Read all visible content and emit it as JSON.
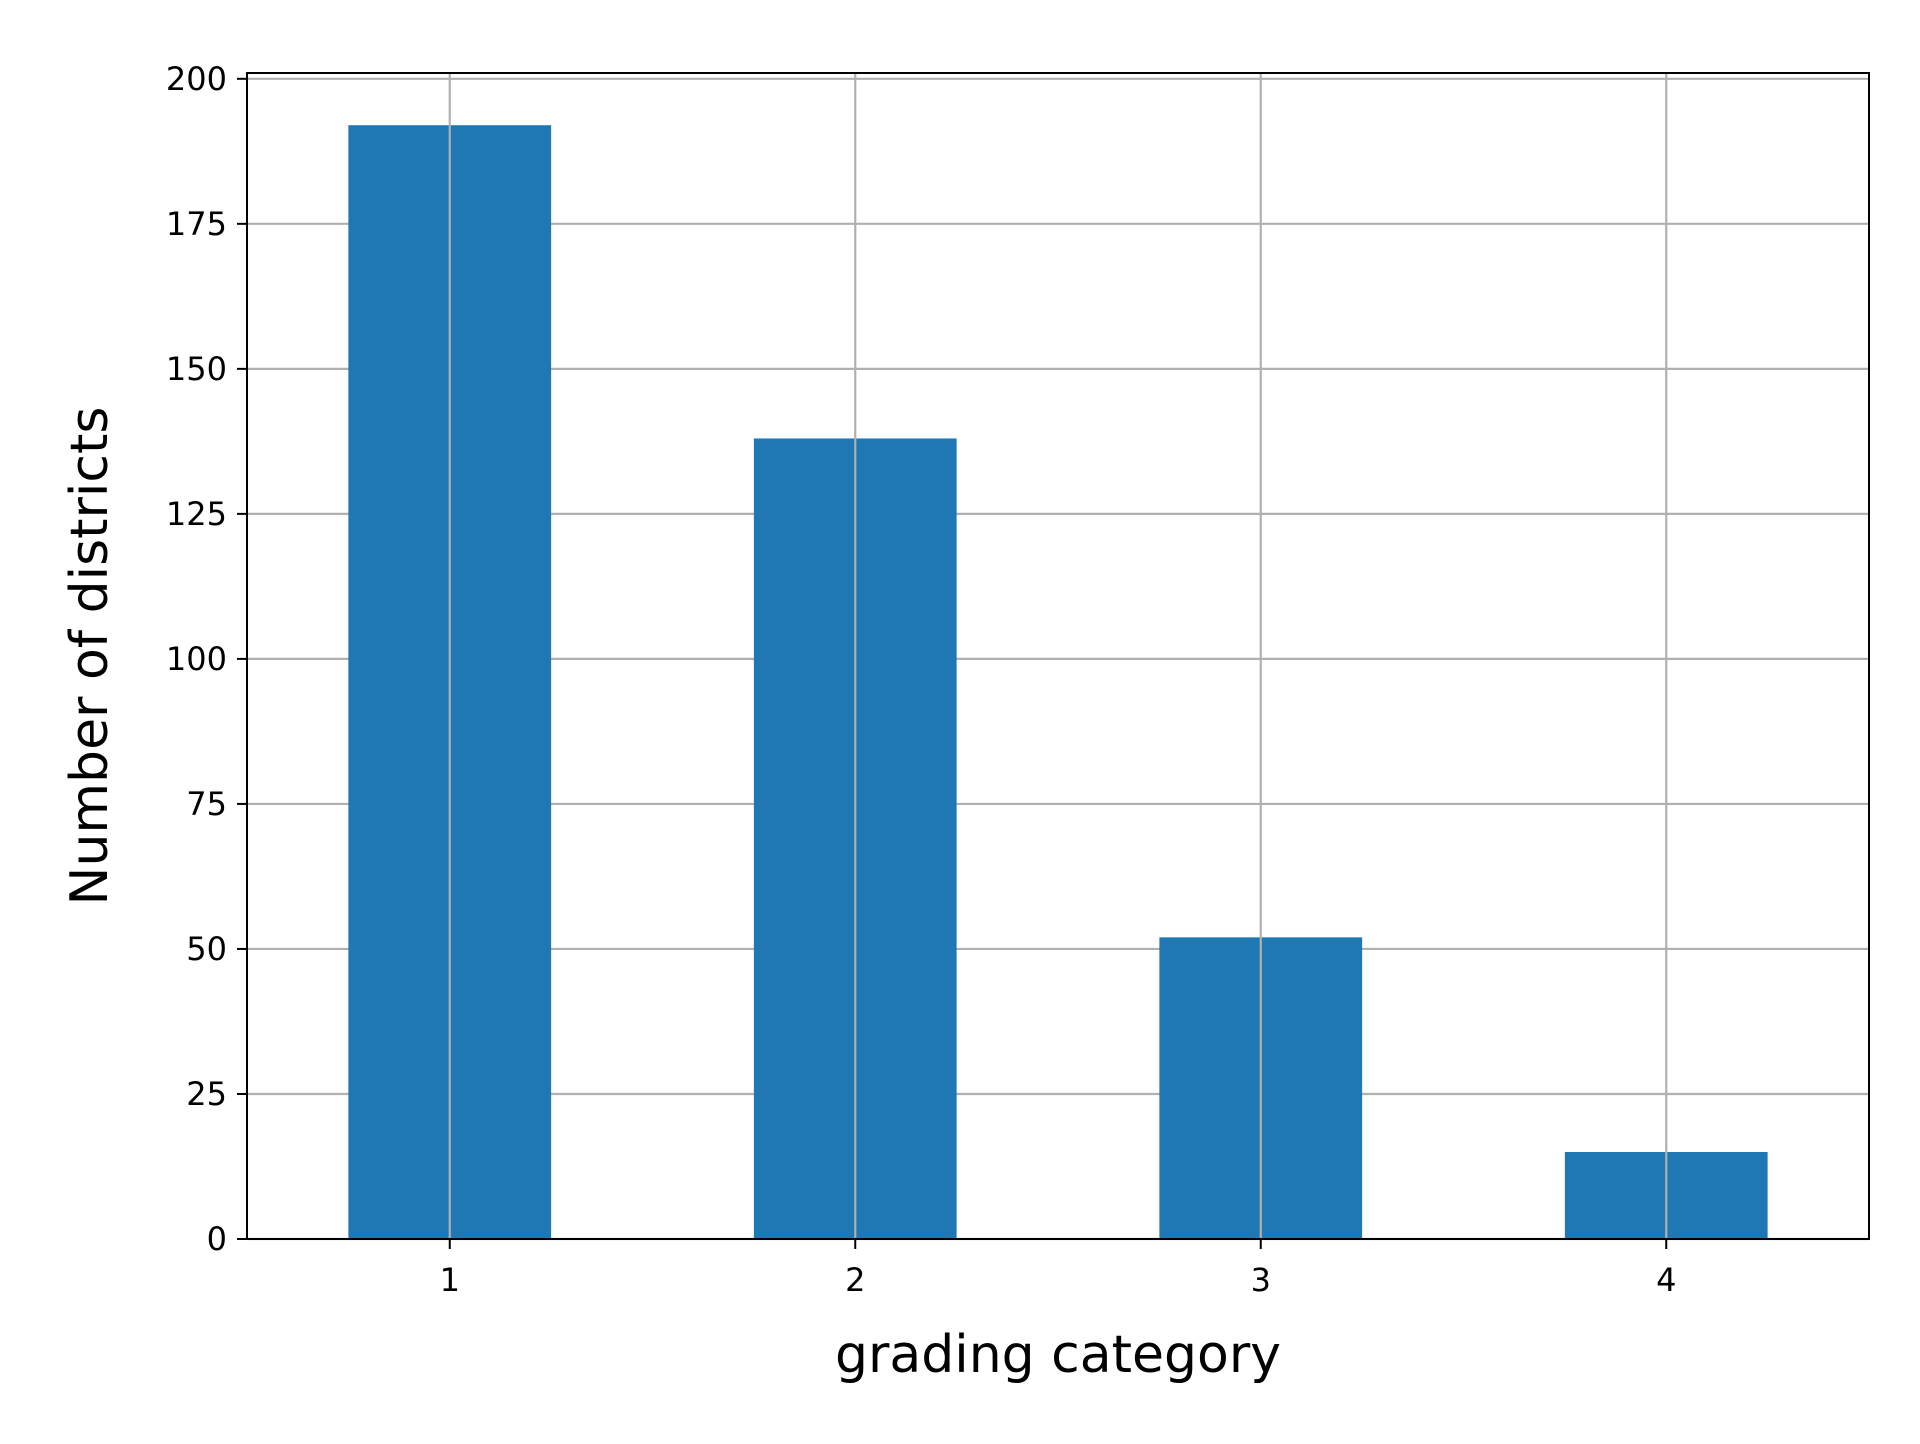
{
  "chart_data": {
    "type": "bar",
    "title": "",
    "xlabel": "grading category",
    "ylabel": "Number of districts",
    "categories": [
      "1",
      "2",
      "3",
      "4"
    ],
    "values": [
      192,
      138,
      52,
      15
    ],
    "ylim": [
      0,
      201
    ],
    "yticks": [
      0,
      25,
      50,
      75,
      100,
      125,
      150,
      175,
      200
    ],
    "ytick_labels": [
      "0",
      "25",
      "50",
      "75",
      "100",
      "125",
      "150",
      "175",
      "200"
    ],
    "grid": true,
    "legend": "none",
    "colors": {
      "bar": "#1f77b4",
      "grid": "#b0b0b0",
      "axes": "#000000",
      "background": "#ffffff"
    }
  }
}
